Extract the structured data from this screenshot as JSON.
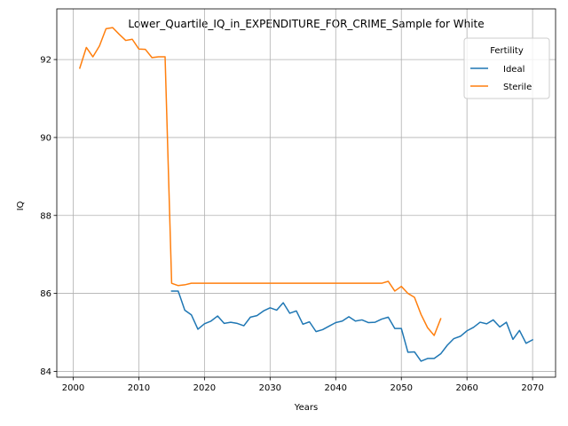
{
  "chart_data": {
    "type": "line",
    "title": "Lower_Quartile_IQ_in_EXPENDITURE_FOR_CRIME_Sample for White",
    "xlabel": "Years",
    "ylabel": "IQ",
    "xlim": [
      1997.5,
      2073.5
    ],
    "ylim": [
      83.85,
      93.3
    ],
    "xticks": [
      2000,
      2010,
      2020,
      2030,
      2040,
      2050,
      2060,
      2070
    ],
    "yticks": [
      84,
      86,
      88,
      90,
      92
    ],
    "grid": true,
    "legend": {
      "title": "Fertility",
      "placement": "top-right"
    },
    "series": [
      {
        "name": "Ideal",
        "color": "#1f77b4",
        "x": [
          2015,
          2016,
          2017,
          2018,
          2019,
          2020,
          2021,
          2022,
          2023,
          2024,
          2025,
          2026,
          2027,
          2028,
          2029,
          2030,
          2031,
          2032,
          2033,
          2034,
          2035,
          2036,
          2037,
          2038,
          2039,
          2040,
          2041,
          2042,
          2043,
          2044,
          2045,
          2046,
          2047,
          2048,
          2049,
          2050,
          2051,
          2052,
          2053,
          2054,
          2055,
          2056,
          2057,
          2058,
          2059,
          2060,
          2061,
          2062,
          2063,
          2064,
          2065,
          2066,
          2067,
          2068,
          2069,
          2070
        ],
        "y": [
          86.06,
          86.06,
          85.57,
          85.45,
          85.08,
          85.22,
          85.29,
          85.42,
          85.23,
          85.26,
          85.23,
          85.17,
          85.39,
          85.43,
          85.55,
          85.63,
          85.57,
          85.76,
          85.49,
          85.55,
          85.21,
          85.27,
          85.02,
          85.07,
          85.16,
          85.25,
          85.29,
          85.4,
          85.29,
          85.32,
          85.25,
          85.26,
          85.34,
          85.39,
          85.1,
          85.1,
          84.49,
          84.5,
          84.26,
          84.33,
          84.33,
          84.45,
          84.67,
          84.84,
          84.9,
          85.04,
          85.13,
          85.26,
          85.22,
          85.32,
          85.14,
          85.26,
          84.82,
          85.05,
          84.72,
          84.81
        ]
      },
      {
        "name": "Sterile",
        "color": "#ff7f0e",
        "x": [
          2001,
          2002,
          2003,
          2004,
          2005,
          2006,
          2007,
          2008,
          2009,
          2010,
          2011,
          2012,
          2013,
          2014,
          2015,
          2016,
          2017,
          2018,
          2019,
          2020,
          2021,
          2022,
          2023,
          2024,
          2025,
          2026,
          2027,
          2028,
          2029,
          2030,
          2031,
          2032,
          2033,
          2034,
          2035,
          2036,
          2037,
          2038,
          2039,
          2040,
          2041,
          2042,
          2043,
          2044,
          2045,
          2046,
          2047,
          2048,
          2049,
          2050,
          2051,
          2052,
          2053,
          2054,
          2055,
          2056
        ],
        "y": [
          91.78,
          92.31,
          92.07,
          92.35,
          92.79,
          92.82,
          92.65,
          92.49,
          92.52,
          92.27,
          92.26,
          92.05,
          92.07,
          92.07,
          86.26,
          86.2,
          86.22,
          86.26,
          86.26,
          86.26,
          86.26,
          86.26,
          86.26,
          86.26,
          86.26,
          86.26,
          86.26,
          86.26,
          86.26,
          86.26,
          86.26,
          86.26,
          86.26,
          86.26,
          86.26,
          86.26,
          86.26,
          86.26,
          86.26,
          86.26,
          86.26,
          86.26,
          86.26,
          86.26,
          86.26,
          86.26,
          86.26,
          86.31,
          86.06,
          86.18,
          86.0,
          85.9,
          85.46,
          85.12,
          84.92,
          85.35
        ]
      }
    ]
  }
}
